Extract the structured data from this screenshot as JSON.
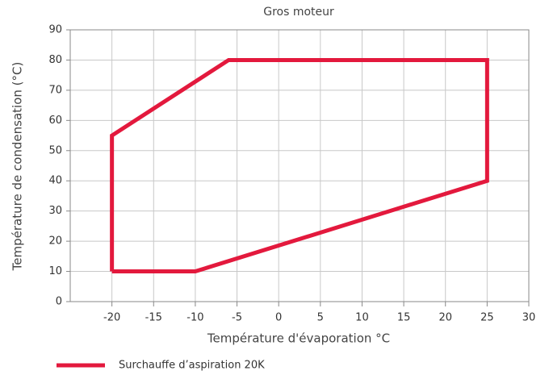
{
  "chart_data": {
    "type": "line",
    "title": "Gros moteur",
    "x_label": "Température d'évaporation °C",
    "y_label": "Température de condensation (°C)",
    "xlim": [
      -25,
      30
    ],
    "xticks": [
      -20,
      -15,
      -10,
      -5,
      0,
      5,
      10,
      15,
      20,
      25,
      30
    ],
    "ylim": [
      0,
      90
    ],
    "yticks": [
      0,
      10,
      20,
      30,
      40,
      50,
      60,
      70,
      80,
      90
    ],
    "grid": true,
    "legend": "bottom left",
    "series": [
      {
        "name": "Surchauffe d’aspiration 20K",
        "color": "#e3193d",
        "x": [
          -20,
          -10,
          25,
          25,
          -6,
          -20,
          -20
        ],
        "values": [
          10,
          10,
          40,
          80,
          80,
          55,
          10
        ]
      }
    ]
  }
}
